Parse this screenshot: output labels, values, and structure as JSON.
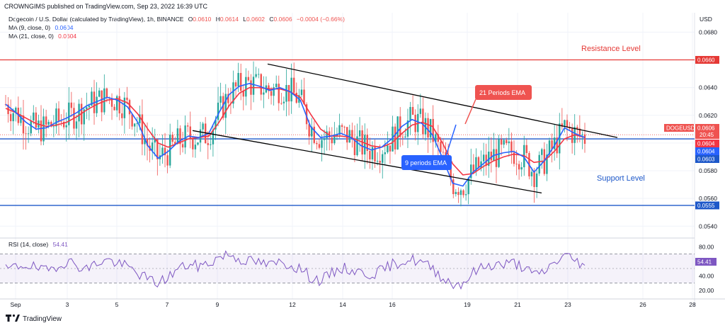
{
  "header": {
    "published": "CROWNGIMS published on TradingView.com, Sep 23, 2022 16:39 UTC",
    "symbol_line": "Dogecoin / U.S. Dollar (calculated by TradingView), 1h, BINANCE",
    "ohlc": {
      "o_label": "O",
      "o": "0.0610",
      "h_label": "H",
      "h": "0.0614",
      "l_label": "L",
      "l": "0.0602",
      "c_label": "C",
      "c": "0.0606",
      "chg": "−0.0004 (−0.66%)"
    },
    "ma1_label": "MA (9, close, 0)",
    "ma1_value": "0.0604",
    "ma2_label": "MA (21, close, 0)",
    "ma2_value": "0.0604",
    "currency": "USD"
  },
  "annotations": {
    "resistance": "Resistance Level",
    "support": "Support Level",
    "ema21": "21 Periods EMA",
    "ema9": "9 periods EMA"
  },
  "price_tags": {
    "resistance": "0.0660",
    "symbol": "DOGEUSD",
    "last": "0.0606",
    "countdown": "20:45",
    "ma_a": "0.0604",
    "ma_b": "0.0604",
    "hline": "0.0603",
    "support": "0.0555"
  },
  "rsi": {
    "label": "RSI (14, close)",
    "value": "54.41",
    "ticks": [
      "80.00",
      "60.00",
      "40.00",
      "20.00"
    ]
  },
  "footer": {
    "brand": "TradingView"
  },
  "colors": {
    "up": "#26a69a",
    "down": "#ef5350",
    "ma9": "#2962ff",
    "ema21": "#f23645",
    "resistance": "#e53935",
    "support": "#1e58c9",
    "rsi": "#7e57c2"
  },
  "chart_data": {
    "type": "line",
    "title": "Dogecoin / U.S. Dollar (calculated by TradingView), 1h, BINANCE",
    "price_axis": {
      "ticks": [
        "0.0680",
        "0.0660",
        "0.0640",
        "0.0620",
        "0.0600",
        "0.0580",
        "0.0560",
        "0.0540"
      ],
      "ylim": [
        0.0533,
        0.0694
      ]
    },
    "time_axis": {
      "ticks": [
        "Sep",
        "3",
        "5",
        "7",
        "9",
        "12",
        "14",
        "16",
        "19",
        "21",
        "23",
        "26",
        "28"
      ]
    },
    "resistance_level": 0.066,
    "support_level": 0.0555,
    "horizontal_line": 0.0603,
    "series": [
      {
        "name": "MA (9, close, 0)",
        "values": [
          0.0628,
          0.0622,
          0.0615,
          0.061,
          0.0611,
          0.0615,
          0.0618,
          0.0622,
          0.0627,
          0.063,
          0.0633,
          0.0631,
          0.0626,
          0.0615,
          0.0598,
          0.0589,
          0.0594,
          0.0601,
          0.0605,
          0.0604,
          0.0607,
          0.0622,
          0.0635,
          0.0641,
          0.0643,
          0.0641,
          0.0638,
          0.064,
          0.0637,
          0.0631,
          0.0612,
          0.0604,
          0.0605,
          0.0607,
          0.0604,
          0.0598,
          0.0595,
          0.0597,
          0.0603,
          0.0612,
          0.0617,
          0.0614,
          0.0606,
          0.0589,
          0.0571,
          0.0569,
          0.0579,
          0.0585,
          0.0591,
          0.0593,
          0.0594,
          0.059,
          0.0579,
          0.0587,
          0.0598,
          0.0611,
          0.0607,
          0.0604
        ]
      },
      {
        "name": "MA (21, close, 0)",
        "values": [
          0.0625,
          0.0622,
          0.0618,
          0.0614,
          0.0612,
          0.0613,
          0.0615,
          0.0619,
          0.0624,
          0.0628,
          0.0631,
          0.0632,
          0.0629,
          0.0621,
          0.061,
          0.06,
          0.0597,
          0.06,
          0.0603,
          0.0604,
          0.0605,
          0.0615,
          0.0627,
          0.0636,
          0.064,
          0.064,
          0.0639,
          0.0639,
          0.0637,
          0.0633,
          0.0621,
          0.061,
          0.0605,
          0.0605,
          0.0604,
          0.0601,
          0.0598,
          0.0597,
          0.06,
          0.0607,
          0.0613,
          0.0615,
          0.0612,
          0.06,
          0.0585,
          0.0577,
          0.0578,
          0.0583,
          0.0587,
          0.059,
          0.0592,
          0.0591,
          0.0586,
          0.0587,
          0.0594,
          0.0603,
          0.0606,
          0.0604
        ]
      }
    ],
    "trendlines": [
      {
        "name": "channel-top",
        "start": 0.0657,
        "end": 0.0604
      },
      {
        "name": "channel-bottom",
        "start": 0.0609,
        "end": 0.0564
      }
    ],
    "rsi_series": [
      48,
      52,
      56,
      50,
      46,
      54,
      60,
      55,
      49,
      58,
      62,
      57,
      52,
      44,
      35,
      30,
      38,
      50,
      55,
      53,
      57,
      66,
      70,
      63,
      60,
      58,
      54,
      59,
      55,
      50,
      38,
      33,
      42,
      51,
      48,
      44,
      42,
      47,
      55,
      60,
      62,
      58,
      50,
      38,
      28,
      30,
      44,
      52,
      56,
      55,
      58,
      52,
      40,
      46,
      58,
      68,
      62,
      54.41
    ],
    "rsi_ylim": [
      10,
      90
    ]
  }
}
